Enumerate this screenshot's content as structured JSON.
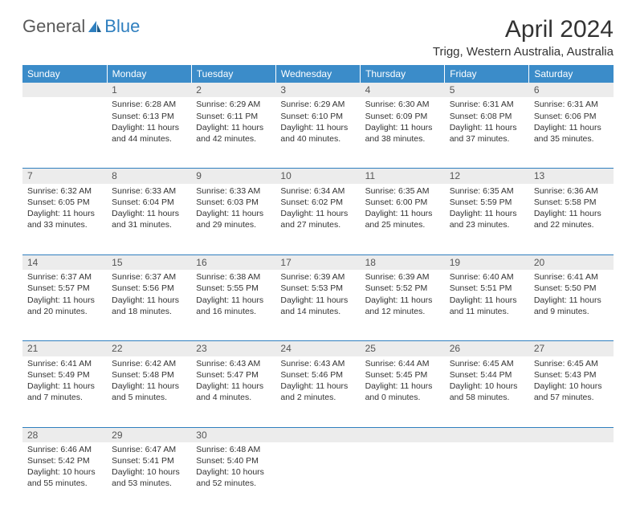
{
  "logo": {
    "text1": "General",
    "text2": "Blue"
  },
  "title": "April 2024",
  "location": "Trigg, Western Australia, Australia",
  "header_bg": "#3b8cc9",
  "days": [
    "Sunday",
    "Monday",
    "Tuesday",
    "Wednesday",
    "Thursday",
    "Friday",
    "Saturday"
  ],
  "weeks": [
    {
      "nums": [
        "",
        "1",
        "2",
        "3",
        "4",
        "5",
        "6"
      ],
      "cells": [
        {
          "sunrise": "",
          "sunset": "",
          "daylight": ""
        },
        {
          "sunrise": "Sunrise: 6:28 AM",
          "sunset": "Sunset: 6:13 PM",
          "daylight": "Daylight: 11 hours and 44 minutes."
        },
        {
          "sunrise": "Sunrise: 6:29 AM",
          "sunset": "Sunset: 6:11 PM",
          "daylight": "Daylight: 11 hours and 42 minutes."
        },
        {
          "sunrise": "Sunrise: 6:29 AM",
          "sunset": "Sunset: 6:10 PM",
          "daylight": "Daylight: 11 hours and 40 minutes."
        },
        {
          "sunrise": "Sunrise: 6:30 AM",
          "sunset": "Sunset: 6:09 PM",
          "daylight": "Daylight: 11 hours and 38 minutes."
        },
        {
          "sunrise": "Sunrise: 6:31 AM",
          "sunset": "Sunset: 6:08 PM",
          "daylight": "Daylight: 11 hours and 37 minutes."
        },
        {
          "sunrise": "Sunrise: 6:31 AM",
          "sunset": "Sunset: 6:06 PM",
          "daylight": "Daylight: 11 hours and 35 minutes."
        }
      ]
    },
    {
      "nums": [
        "7",
        "8",
        "9",
        "10",
        "11",
        "12",
        "13"
      ],
      "cells": [
        {
          "sunrise": "Sunrise: 6:32 AM",
          "sunset": "Sunset: 6:05 PM",
          "daylight": "Daylight: 11 hours and 33 minutes."
        },
        {
          "sunrise": "Sunrise: 6:33 AM",
          "sunset": "Sunset: 6:04 PM",
          "daylight": "Daylight: 11 hours and 31 minutes."
        },
        {
          "sunrise": "Sunrise: 6:33 AM",
          "sunset": "Sunset: 6:03 PM",
          "daylight": "Daylight: 11 hours and 29 minutes."
        },
        {
          "sunrise": "Sunrise: 6:34 AM",
          "sunset": "Sunset: 6:02 PM",
          "daylight": "Daylight: 11 hours and 27 minutes."
        },
        {
          "sunrise": "Sunrise: 6:35 AM",
          "sunset": "Sunset: 6:00 PM",
          "daylight": "Daylight: 11 hours and 25 minutes."
        },
        {
          "sunrise": "Sunrise: 6:35 AM",
          "sunset": "Sunset: 5:59 PM",
          "daylight": "Daylight: 11 hours and 23 minutes."
        },
        {
          "sunrise": "Sunrise: 6:36 AM",
          "sunset": "Sunset: 5:58 PM",
          "daylight": "Daylight: 11 hours and 22 minutes."
        }
      ]
    },
    {
      "nums": [
        "14",
        "15",
        "16",
        "17",
        "18",
        "19",
        "20"
      ],
      "cells": [
        {
          "sunrise": "Sunrise: 6:37 AM",
          "sunset": "Sunset: 5:57 PM",
          "daylight": "Daylight: 11 hours and 20 minutes."
        },
        {
          "sunrise": "Sunrise: 6:37 AM",
          "sunset": "Sunset: 5:56 PM",
          "daylight": "Daylight: 11 hours and 18 minutes."
        },
        {
          "sunrise": "Sunrise: 6:38 AM",
          "sunset": "Sunset: 5:55 PM",
          "daylight": "Daylight: 11 hours and 16 minutes."
        },
        {
          "sunrise": "Sunrise: 6:39 AM",
          "sunset": "Sunset: 5:53 PM",
          "daylight": "Daylight: 11 hours and 14 minutes."
        },
        {
          "sunrise": "Sunrise: 6:39 AM",
          "sunset": "Sunset: 5:52 PM",
          "daylight": "Daylight: 11 hours and 12 minutes."
        },
        {
          "sunrise": "Sunrise: 6:40 AM",
          "sunset": "Sunset: 5:51 PM",
          "daylight": "Daylight: 11 hours and 11 minutes."
        },
        {
          "sunrise": "Sunrise: 6:41 AM",
          "sunset": "Sunset: 5:50 PM",
          "daylight": "Daylight: 11 hours and 9 minutes."
        }
      ]
    },
    {
      "nums": [
        "21",
        "22",
        "23",
        "24",
        "25",
        "26",
        "27"
      ],
      "cells": [
        {
          "sunrise": "Sunrise: 6:41 AM",
          "sunset": "Sunset: 5:49 PM",
          "daylight": "Daylight: 11 hours and 7 minutes."
        },
        {
          "sunrise": "Sunrise: 6:42 AM",
          "sunset": "Sunset: 5:48 PM",
          "daylight": "Daylight: 11 hours and 5 minutes."
        },
        {
          "sunrise": "Sunrise: 6:43 AM",
          "sunset": "Sunset: 5:47 PM",
          "daylight": "Daylight: 11 hours and 4 minutes."
        },
        {
          "sunrise": "Sunrise: 6:43 AM",
          "sunset": "Sunset: 5:46 PM",
          "daylight": "Daylight: 11 hours and 2 minutes."
        },
        {
          "sunrise": "Sunrise: 6:44 AM",
          "sunset": "Sunset: 5:45 PM",
          "daylight": "Daylight: 11 hours and 0 minutes."
        },
        {
          "sunrise": "Sunrise: 6:45 AM",
          "sunset": "Sunset: 5:44 PM",
          "daylight": "Daylight: 10 hours and 58 minutes."
        },
        {
          "sunrise": "Sunrise: 6:45 AM",
          "sunset": "Sunset: 5:43 PM",
          "daylight": "Daylight: 10 hours and 57 minutes."
        }
      ]
    },
    {
      "nums": [
        "28",
        "29",
        "30",
        "",
        "",
        "",
        ""
      ],
      "cells": [
        {
          "sunrise": "Sunrise: 6:46 AM",
          "sunset": "Sunset: 5:42 PM",
          "daylight": "Daylight: 10 hours and 55 minutes."
        },
        {
          "sunrise": "Sunrise: 6:47 AM",
          "sunset": "Sunset: 5:41 PM",
          "daylight": "Daylight: 10 hours and 53 minutes."
        },
        {
          "sunrise": "Sunrise: 6:48 AM",
          "sunset": "Sunset: 5:40 PM",
          "daylight": "Daylight: 10 hours and 52 minutes."
        },
        {
          "sunrise": "",
          "sunset": "",
          "daylight": ""
        },
        {
          "sunrise": "",
          "sunset": "",
          "daylight": ""
        },
        {
          "sunrise": "",
          "sunset": "",
          "daylight": ""
        },
        {
          "sunrise": "",
          "sunset": "",
          "daylight": ""
        }
      ]
    }
  ]
}
